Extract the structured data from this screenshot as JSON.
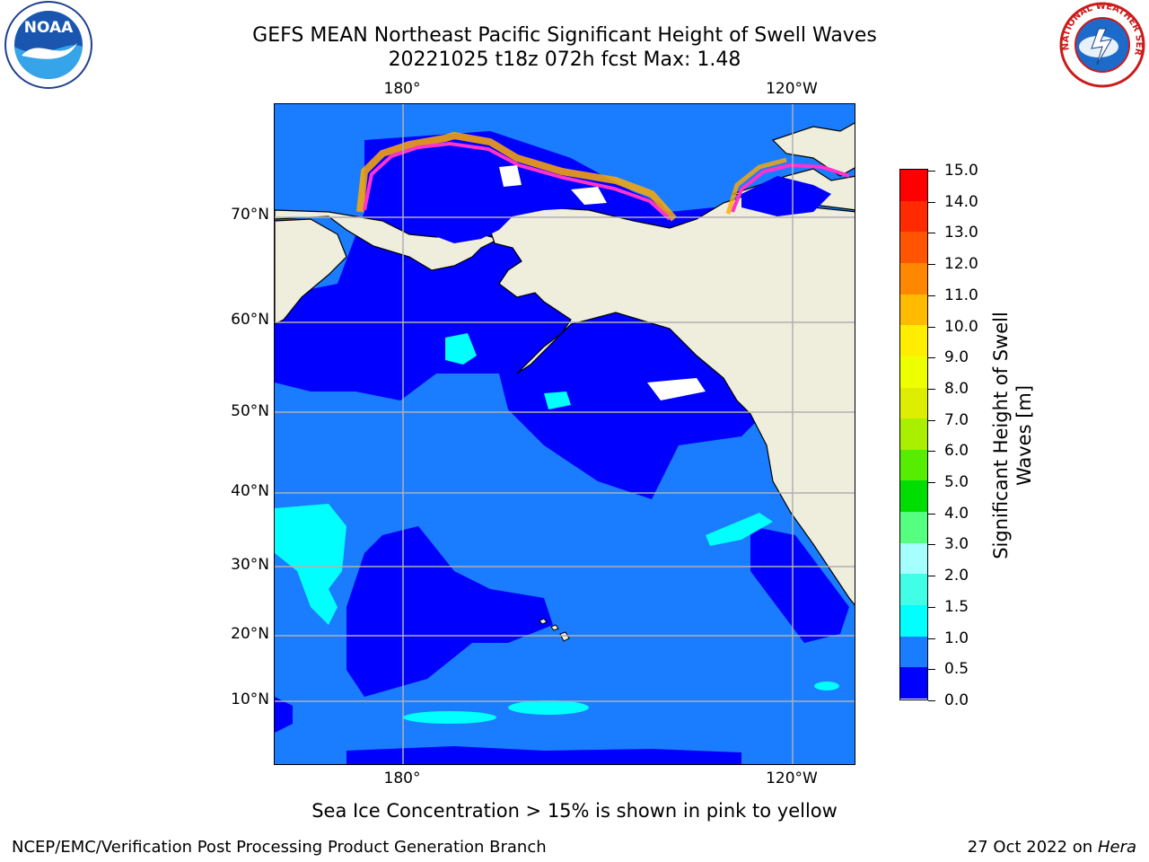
{
  "title": {
    "line1": "GEFS MEAN Northeast Pacific Significant Height of Swell Waves",
    "line2": "20221025 t18z 072h fcst   Max: 1.48"
  },
  "logos": {
    "left": "noaa-logo",
    "left_text": "NOAA",
    "right": "nws-logo",
    "right_text": "NATIONAL WEATHER SERVICE"
  },
  "map": {
    "lat_ticks": [
      "70°N",
      "60°N",
      "50°N",
      "40°N",
      "30°N",
      "20°N",
      "10°N"
    ],
    "lon_ticks_top": [
      "180°",
      "120°W"
    ],
    "lon_ticks_bottom": [
      "180°",
      "120°W"
    ],
    "colors": {
      "land": "#efeddc",
      "ocean_low": "#0000ff",
      "ocean_mid": "#1a7cff",
      "ocean_high": "#00ffff",
      "sea_ice": [
        "#ff33cc",
        "#ffaa00",
        "#ffd23f"
      ],
      "grid": "#b0b0b0"
    }
  },
  "colorbar": {
    "title_line1": "Significant Height of Swell",
    "title_line2": "Waves [m]",
    "labels": [
      "15.0",
      "14.0",
      "13.0",
      "12.0",
      "11.0",
      "10.0",
      "9.0",
      "8.0",
      "7.0",
      "6.0",
      "5.0",
      "4.0",
      "3.0",
      "2.0",
      "1.5",
      "1.0",
      "0.5",
      "0.0"
    ],
    "colors_bottom_to_top": [
      "#0000ff",
      "#1a7cff",
      "#00ffff",
      "#40ffe6",
      "#a6ffff",
      "#55ff80",
      "#00dd00",
      "#55ee00",
      "#aaee00",
      "#ddee00",
      "#eeff00",
      "#ffee00",
      "#ffbb00",
      "#ff8800",
      "#ff5500",
      "#ff2a00",
      "#ff0000"
    ]
  },
  "footer": {
    "note": "Sea Ice Concentration > 15% is shown in pink to yellow",
    "left": "NCEP/EMC/Verification Post Processing Product Generation Branch",
    "right_date": "27 Oct 2022 on ",
    "right_host": "Hera"
  }
}
